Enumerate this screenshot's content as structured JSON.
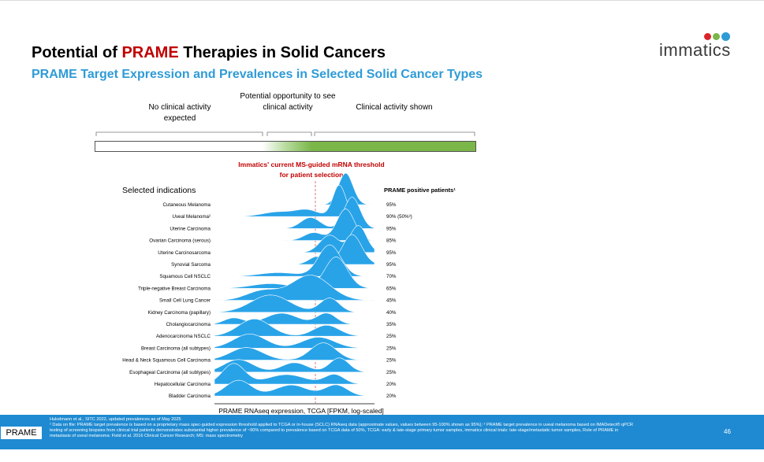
{
  "header": {
    "title_prefix": "Potential of ",
    "title_highlight": "PRAME",
    "title_suffix": " Therapies in Solid Cancers",
    "subtitle": "PRAME Target Expression and Prevalences in Selected Solid Cancer Types",
    "logo_text": "immatics"
  },
  "zones": [
    "No clinical activity expected",
    "Potential opportunity to see clinical activity",
    "Clinical activity shown"
  ],
  "chart_data": {
    "type": "ridgeline",
    "left_header": "Selected indications",
    "right_header": "PRAME positive patients¹",
    "threshold_label": "Immatics' current MS-guided mRNA threshold for patient selection",
    "xlabel": "PRAME RNAseq expression, TCGA [FPKM, log-scaled]",
    "color": "#29a3e8",
    "indications": [
      {
        "name": "Cutaneous Melanoma",
        "positive": "95%",
        "peaks": [
          [
            0.82,
            1.0,
            0.045
          ]
        ]
      },
      {
        "name": "Uveal Melanoma²",
        "positive": "90% (50%³)",
        "peaks": [
          [
            0.78,
            1.0,
            0.04
          ],
          [
            0.4,
            0.15,
            0.1
          ],
          [
            0.58,
            0.2,
            0.07
          ]
        ]
      },
      {
        "name": "Uterine Carcinoma",
        "positive": "95%",
        "peaks": [
          [
            0.86,
            1.0,
            0.05
          ],
          [
            0.6,
            0.35,
            0.06
          ]
        ]
      },
      {
        "name": "Ovarian Carcinoma (serous)",
        "positive": "85%",
        "peaks": [
          [
            0.82,
            1.0,
            0.055
          ],
          [
            0.62,
            0.25,
            0.06
          ]
        ]
      },
      {
        "name": "Uterine Carcinosarcoma",
        "positive": "95%",
        "peaks": [
          [
            0.9,
            0.85,
            0.05
          ],
          [
            0.72,
            0.55,
            0.06
          ]
        ]
      },
      {
        "name": "Synovial Sarcoma",
        "positive": "95%",
        "peaks": [
          [
            0.86,
            0.95,
            0.06
          ],
          [
            0.64,
            0.25,
            0.05
          ]
        ]
      },
      {
        "name": "Squamous Cell NSCLC",
        "positive": "70%",
        "peaks": [
          [
            0.72,
            1.0,
            0.07
          ],
          [
            0.4,
            0.12,
            0.12
          ]
        ]
      },
      {
        "name": "Triple-negative Breast Carcinoma",
        "positive": "65%",
        "peaks": [
          [
            0.76,
            1.0,
            0.07
          ],
          [
            0.35,
            0.15,
            0.12
          ]
        ]
      },
      {
        "name": "Small Cell Lung Cancer",
        "positive": "45%",
        "peaks": [
          [
            0.6,
            0.8,
            0.12
          ],
          [
            0.3,
            0.3,
            0.1
          ]
        ]
      },
      {
        "name": "Kidney Carcinoma (papillary)",
        "positive": "40%",
        "peaks": [
          [
            0.35,
            0.55,
            0.12
          ],
          [
            0.72,
            0.45,
            0.06
          ]
        ]
      },
      {
        "name": "Cholangiocarcinoma",
        "positive": "35%",
        "peaks": [
          [
            0.42,
            0.35,
            0.1
          ],
          [
            0.7,
            0.35,
            0.06
          ],
          [
            0.12,
            0.2,
            0.06
          ]
        ]
      },
      {
        "name": "Adenocarcinoma NSCLC",
        "positive": "25%",
        "peaks": [
          [
            0.25,
            0.55,
            0.1
          ],
          [
            0.7,
            0.35,
            0.08
          ]
        ]
      },
      {
        "name": "Breast Carcinoma (all subtypes)",
        "positive": "25%",
        "peaks": [
          [
            0.22,
            0.45,
            0.1
          ],
          [
            0.65,
            0.35,
            0.1
          ]
        ]
      },
      {
        "name": "Head & Neck Squamous Cell Carcinoma",
        "positive": "25%",
        "peaks": [
          [
            0.2,
            0.4,
            0.1
          ],
          [
            0.68,
            0.55,
            0.08
          ]
        ]
      },
      {
        "name": "Esophageal Carcinoma (all subtypes)",
        "positive": "25%",
        "peaks": [
          [
            0.15,
            0.4,
            0.09
          ],
          [
            0.5,
            0.3,
            0.08
          ],
          [
            0.78,
            0.45,
            0.06
          ]
        ]
      },
      {
        "name": "Hepatocellular Carcinoma",
        "positive": "20%",
        "peaks": [
          [
            0.12,
            0.65,
            0.07
          ],
          [
            0.45,
            0.3,
            0.12
          ],
          [
            0.75,
            0.3,
            0.06
          ]
        ]
      },
      {
        "name": "Bladder Carcinoma",
        "positive": "20%",
        "peaks": [
          [
            0.15,
            0.5,
            0.08
          ],
          [
            0.48,
            0.35,
            0.1
          ],
          [
            0.76,
            0.35,
            0.07
          ]
        ]
      }
    ]
  },
  "footer": {
    "tag": "PRAME",
    "notes": [
      "Hukelmann et al., SITC 2022, updated prevalences as of May 2025",
      "¹ Data on file: PRAME target prevalence is based on a proprietary mass spec-guided expression threshold applied to TCGA or in-house (SCLC) RNAseq data (approximate values, values between 95-100% shown as 95%); ² PRAME target prevalence in uveal melanoma based on IMADetect® qPCR testing of screening biopsies from clinical trial patients demonstrates substantial higher prevalence of ~90% compared to prevalence based on TCGA data of 50%, TCGA: early & late-stage primary tumor samples, immatics clinical trials: late-stage/metastatic tumor samples, Role of PRAME in metastasis of uveal melanoma: Field et al. 2016 Clinical Cancer Research; MS: mass spectrometry"
    ],
    "page": "46"
  }
}
